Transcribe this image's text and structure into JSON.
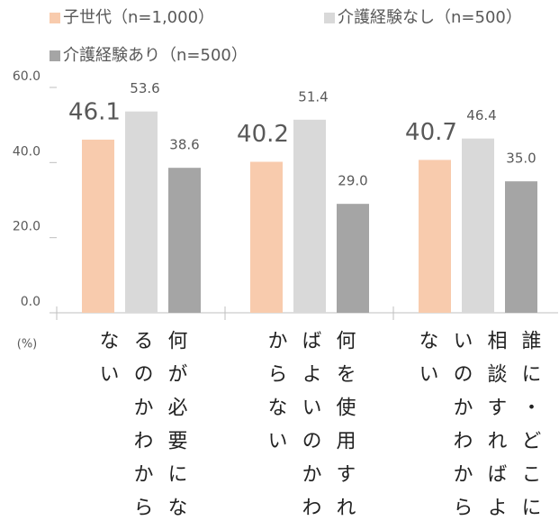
{
  "chart_data": {
    "type": "bar",
    "categories": [
      "何が必要になるのかわからない",
      "何を使用すればよいのかわからない",
      "誰に・どこに相談すればよいのかわからない"
    ],
    "series": [
      {
        "name": "子世代（n=1,000）",
        "color": "#f8cbad",
        "values": [
          46.1,
          40.2,
          40.7
        ]
      },
      {
        "name": "介護経験なし（n=500）",
        "color": "#d9d9d9",
        "values": [
          53.6,
          51.4,
          46.4
        ]
      },
      {
        "name": "介護経験あり（n=500）",
        "color": "#a5a5a5",
        "values": [
          38.6,
          29.0,
          35.0
        ],
        "value_labels": [
          "38.6",
          "29.0",
          "35.0"
        ]
      }
    ],
    "y_axis_label": "(%)",
    "ylim": [
      0,
      60
    ],
    "yticks": [
      {
        "value": 0,
        "label": "0.0"
      },
      {
        "value": 20,
        "label": "20.0"
      },
      {
        "value": 40,
        "label": "40.0"
      },
      {
        "value": 60,
        "label": "60.0"
      }
    ]
  }
}
